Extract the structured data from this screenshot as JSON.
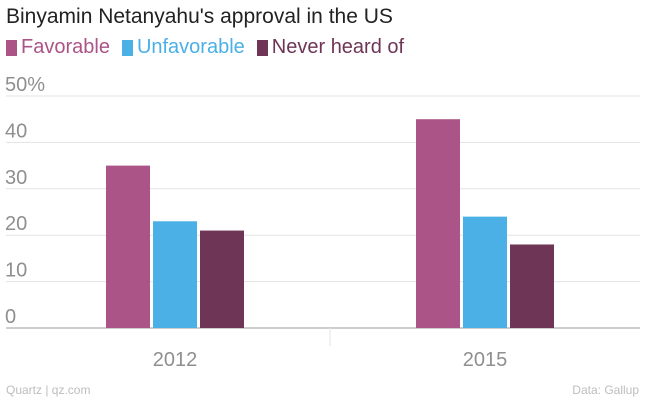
{
  "chart_data": {
    "type": "bar",
    "title": "Binyamin Netanyahu's approval in the US",
    "categories": [
      "2012",
      "2015"
    ],
    "series": [
      {
        "name": "Favorable",
        "color": "#ab5487",
        "values": [
          35,
          45
        ]
      },
      {
        "name": "Unfavorable",
        "color": "#4ab0e6",
        "values": [
          23,
          24
        ]
      },
      {
        "name": "Never heard of",
        "color": "#6e3556",
        "values": [
          21,
          18
        ]
      }
    ],
    "y_ticks": [
      "50%",
      "40",
      "30",
      "20",
      "10",
      "0"
    ],
    "ylim": [
      0,
      50
    ],
    "grid": true,
    "legend_position": "top-left"
  },
  "footer": {
    "source_left": "Quartz | qz.com",
    "source_right": "Data: Gallup"
  }
}
